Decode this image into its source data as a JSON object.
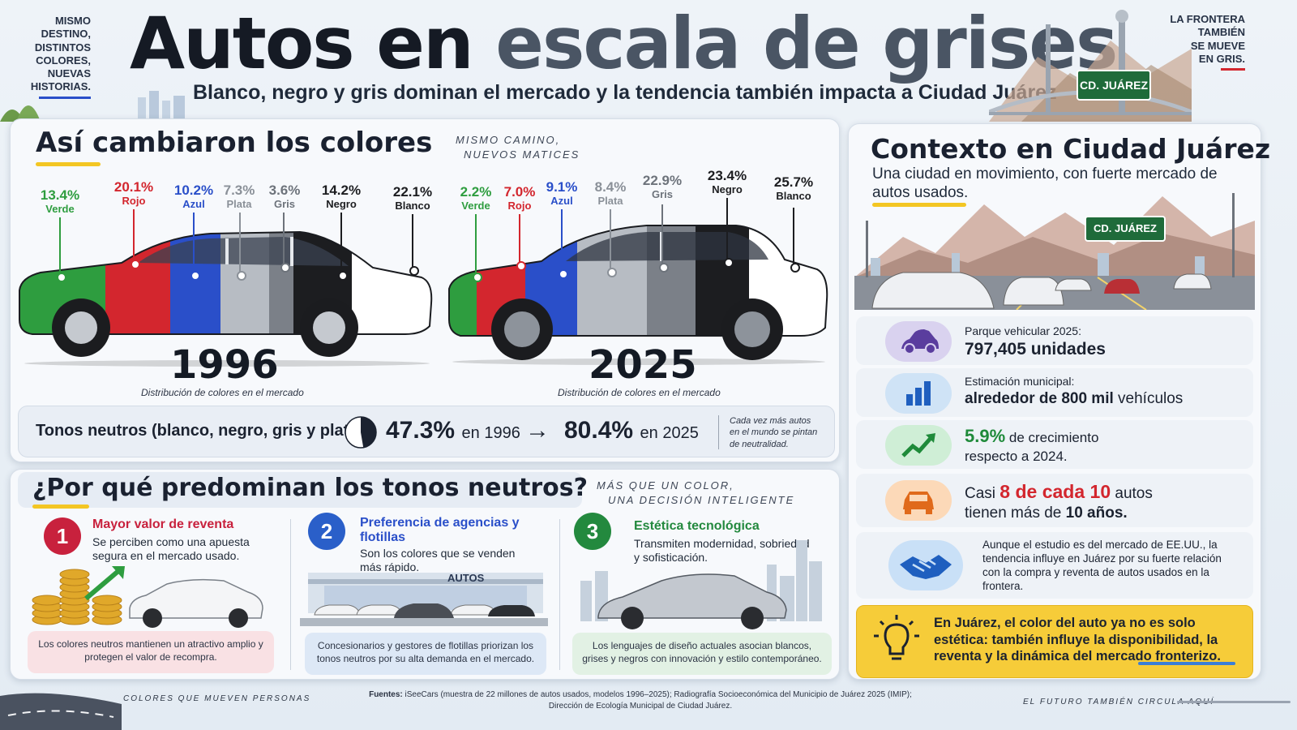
{
  "header": {
    "title_dark": "Autos en",
    "title_gray": "escala de grises",
    "subtitle": "Blanco, negro y gris dominan el mercado y la tendencia también impacta a Ciudad Juárez",
    "left_note": [
      "MISMO",
      "DESTINO,",
      "DISTINTOS",
      "COLORES,",
      "NUEVAS",
      "HISTORIAS."
    ],
    "right_note": [
      "LA FRONTERA",
      "TAMBIÉN",
      "SE MUEVE",
      "EN GRIS."
    ],
    "sign_label": "CD. JUÁREZ"
  },
  "colors": {
    "verde": "#2e9d3f",
    "rojo": "#d3262e",
    "azul": "#2a4fc9",
    "plata": "#b7bcc3",
    "gris": "#7b8088",
    "negro": "#1c1d20",
    "blanco": "#ffffff",
    "accent_yellow": "#f3c623"
  },
  "comparison": {
    "heading": "Así cambiaron los colores",
    "note": [
      "MISMO CAMINO,",
      "NUEVOS MATICES"
    ],
    "car_1996": {
      "year": "1996",
      "caption": "Distribución de colores en el mercado",
      "labels": [
        {
          "pct": "13.4%",
          "name": "Verde"
        },
        {
          "pct": "20.1%",
          "name": "Rojo"
        },
        {
          "pct": "10.2%",
          "name": "Azul"
        },
        {
          "pct": "7.3%",
          "name": "Plata"
        },
        {
          "pct": "3.6%",
          "name": "Gris"
        },
        {
          "pct": "14.2%",
          "name": "Negro"
        },
        {
          "pct": "22.1%",
          "name": "Blanco"
        }
      ]
    },
    "car_2025": {
      "year": "2025",
      "caption": "Distribución de colores en el mercado",
      "labels": [
        {
          "pct": "2.2%",
          "name": "Verde"
        },
        {
          "pct": "7.0%",
          "name": "Rojo"
        },
        {
          "pct": "9.1%",
          "name": "Azul"
        },
        {
          "pct": "8.4%",
          "name": "Plata"
        },
        {
          "pct": "22.9%",
          "name": "Gris"
        },
        {
          "pct": "23.4%",
          "name": "Negro"
        },
        {
          "pct": "25.7%",
          "name": "Blanco"
        }
      ]
    },
    "neutral": {
      "label": "Tonos neutros (blanco, negro, gris y plata):",
      "value_1996": "47.3%",
      "suffix_1996": "en 1996",
      "arrow": "→",
      "value_2025": "80.4%",
      "suffix_2025": "en 2025",
      "pie_fraction_1996": 0.473,
      "side_note": [
        "Cada vez más autos",
        "en el mundo se pintan",
        "de neutralidad."
      ]
    }
  },
  "why": {
    "heading": "¿Por qué predominan los tonos neutros?",
    "note": [
      "MÁS QUE UN COLOR,",
      "UNA DECISIÓN INTELIGENTE"
    ],
    "items": [
      {
        "num": "1",
        "title": "Mayor valor de reventa",
        "text": "Se perciben como una apuesta segura en el mercado usado.",
        "box": "Los colores neutros mantienen un atractivo amplio y protegen el valor de recompra.",
        "color": "#c8213d"
      },
      {
        "num": "2",
        "title": "Preferencia de agencias y flotillas",
        "text": "Son los colores que se venden más rápido.",
        "box": "Concesionarios y gestores de flotillas priorizan los tonos neutros por su alta demanda en el mercado.",
        "color": "#2a5fc9",
        "building_sign": "AUTOS"
      },
      {
        "num": "3",
        "title": "Estética tecnológica",
        "text": "Transmiten modernidad, sobriedad y sofisticación.",
        "box": "Los lenguajes de diseño actuales asocian blancos, grises y negros con innovación y estilo contemporáneo.",
        "color": "#23893e"
      }
    ]
  },
  "context": {
    "heading": "Contexto en Ciudad Juárez",
    "sub": "Una ciudad en movimiento, con fuerte mercado de autos usados.",
    "sign_label": "CD. JUÁREZ",
    "stats": [
      {
        "icon": "car-icon",
        "line1": "Parque vehicular 2025:",
        "line2": "797,405 unidades"
      },
      {
        "icon": "bar-chart-icon",
        "line1": "Estimación municipal:",
        "line2_bold": "alrededor de 800 mil",
        "line2_rest": " vehículos"
      },
      {
        "icon": "growth-arrow-icon",
        "value": "5.9%",
        "line1_rest": " de crecimiento",
        "line2": "respecto a 2024."
      },
      {
        "icon": "car-front-icon",
        "pre": "Casi ",
        "highlight": "8 de cada 10",
        "post": " autos",
        "line2_pre": "tienen más de ",
        "line2_bold": "10 años."
      },
      {
        "icon": "handshake-icon",
        "text": "Aunque el estudio es del mercado de EE.UU., la tendencia influye en Juárez por su fuerte relación con la compra y reventa de autos usados en la frontera."
      }
    ],
    "callout": "En Juárez, el color del auto ya no es solo estética: también influye la disponibilidad, la reventa y la dinámica del mercado fronterizo."
  },
  "footer": {
    "left": "COLORES QUE MUEVEN PERSONAS",
    "right": "EL FUTURO TAMBIÉN CIRCULA AQUÍ",
    "sources_label": "Fuentes:",
    "sources_line1": " iSeeCars (muestra de 22 millones de autos usados, modelos 1996–2025); Radiografía Socioeconómica del Municipio de Juárez 2025 (IMIP);",
    "sources_line2": "Dirección de Ecología Municipal de Ciudad Juárez."
  }
}
